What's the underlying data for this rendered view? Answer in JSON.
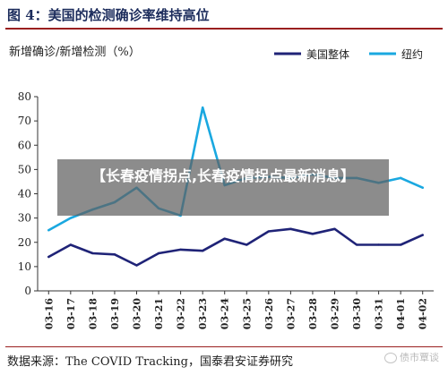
{
  "figure": {
    "title": "图 4：美国的检测确诊率维持高位"
  },
  "overlay": {
    "text": "【长春疫情拐点,长春疫情拐点最新消息】"
  },
  "footer": {
    "source": "数据来源：The COVID Tracking，国泰君安证券研究",
    "watermark": "债市覃谈"
  },
  "colors": {
    "title": "#1c2c5c",
    "rule": "#9a1f1f",
    "series_us": "#1f2377",
    "series_ny": "#1aa8e0"
  },
  "chart_data": {
    "type": "line",
    "ylabel": "新增确诊/新增检测（%）",
    "categories": [
      "03-16",
      "03-17",
      "03-18",
      "03-19",
      "03-20",
      "03-21",
      "03-22",
      "03-23",
      "03-24",
      "03-25",
      "03-26",
      "03-27",
      "03-28",
      "03-29",
      "03-30",
      "03-31",
      "04-01",
      "04-02"
    ],
    "ylim": [
      0,
      80
    ],
    "yticks": [
      0,
      10,
      20,
      30,
      40,
      50,
      60,
      70,
      80
    ],
    "grid": false,
    "legend": "top-right",
    "series": [
      {
        "name": "美国整体",
        "color": "#1f2377",
        "values": [
          14,
          19,
          15.5,
          15,
          10.5,
          15.5,
          17,
          16.5,
          21.5,
          19,
          24.5,
          25.5,
          23.5,
          25.5,
          19,
          19,
          19,
          23
        ]
      },
      {
        "name": "纽约",
        "color": "#1aa8e0",
        "values": [
          25,
          30,
          33.5,
          36.5,
          42.5,
          34,
          31,
          75.5,
          43.5,
          46.5,
          47,
          46.5,
          48,
          46.5,
          46.5,
          44.5,
          46.5,
          42.5
        ]
      }
    ]
  }
}
